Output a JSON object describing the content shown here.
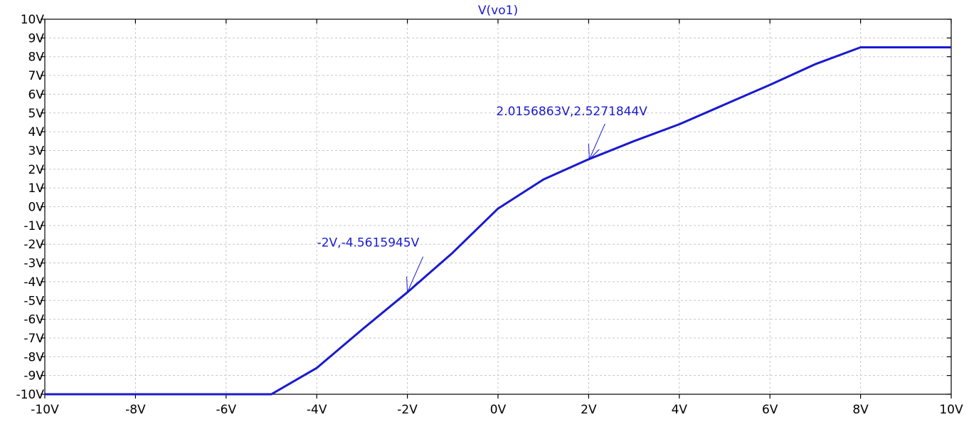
{
  "chart_data": {
    "type": "line",
    "title": "V(vo1)",
    "xlabel": "",
    "ylabel": "",
    "xlim": [
      -10,
      10
    ],
    "ylim": [
      -10,
      10
    ],
    "grid": true,
    "x_ticks": [
      -10,
      -8,
      -6,
      -4,
      -2,
      0,
      2,
      4,
      6,
      8,
      10
    ],
    "x_tick_labels": [
      "-10V",
      "-8V",
      "-6V",
      "-4V",
      "-2V",
      "0V",
      "2V",
      "4V",
      "6V",
      "8V",
      "10V"
    ],
    "y_ticks": [
      10,
      9,
      8,
      7,
      6,
      5,
      4,
      3,
      2,
      1,
      0,
      -1,
      -2,
      -3,
      -4,
      -5,
      -6,
      -7,
      -8,
      -9,
      -10
    ],
    "y_tick_labels": [
      "10V",
      "9V",
      "8V",
      "7V",
      "6V",
      "5V",
      "4V",
      "3V",
      "2V",
      "1V",
      "0V",
      "-1V",
      "-2V",
      "-3V",
      "-4V",
      "-5V",
      "-6V",
      "-7V",
      "-8V",
      "-9V",
      "-10V"
    ],
    "series": [
      {
        "name": "V(vo1)",
        "color": "#1a1ad0",
        "x": [
          -10,
          -5,
          -4,
          -3,
          -2,
          -1,
          0,
          1,
          2,
          3,
          4,
          5,
          6,
          7,
          8,
          10
        ],
        "y": [
          -10,
          -10,
          -8.6,
          -6.55,
          -4.56,
          -2.45,
          -0.1,
          1.45,
          2.53,
          3.5,
          4.4,
          5.45,
          6.5,
          7.6,
          8.5,
          8.5
        ]
      }
    ],
    "annotations": [
      {
        "text": "-2V,-4.5615945V",
        "x": -2,
        "y": -4.5615945
      },
      {
        "text": "2.0156863V,2.5271844V",
        "x": 2.0156863,
        "y": 2.5271844
      }
    ]
  }
}
